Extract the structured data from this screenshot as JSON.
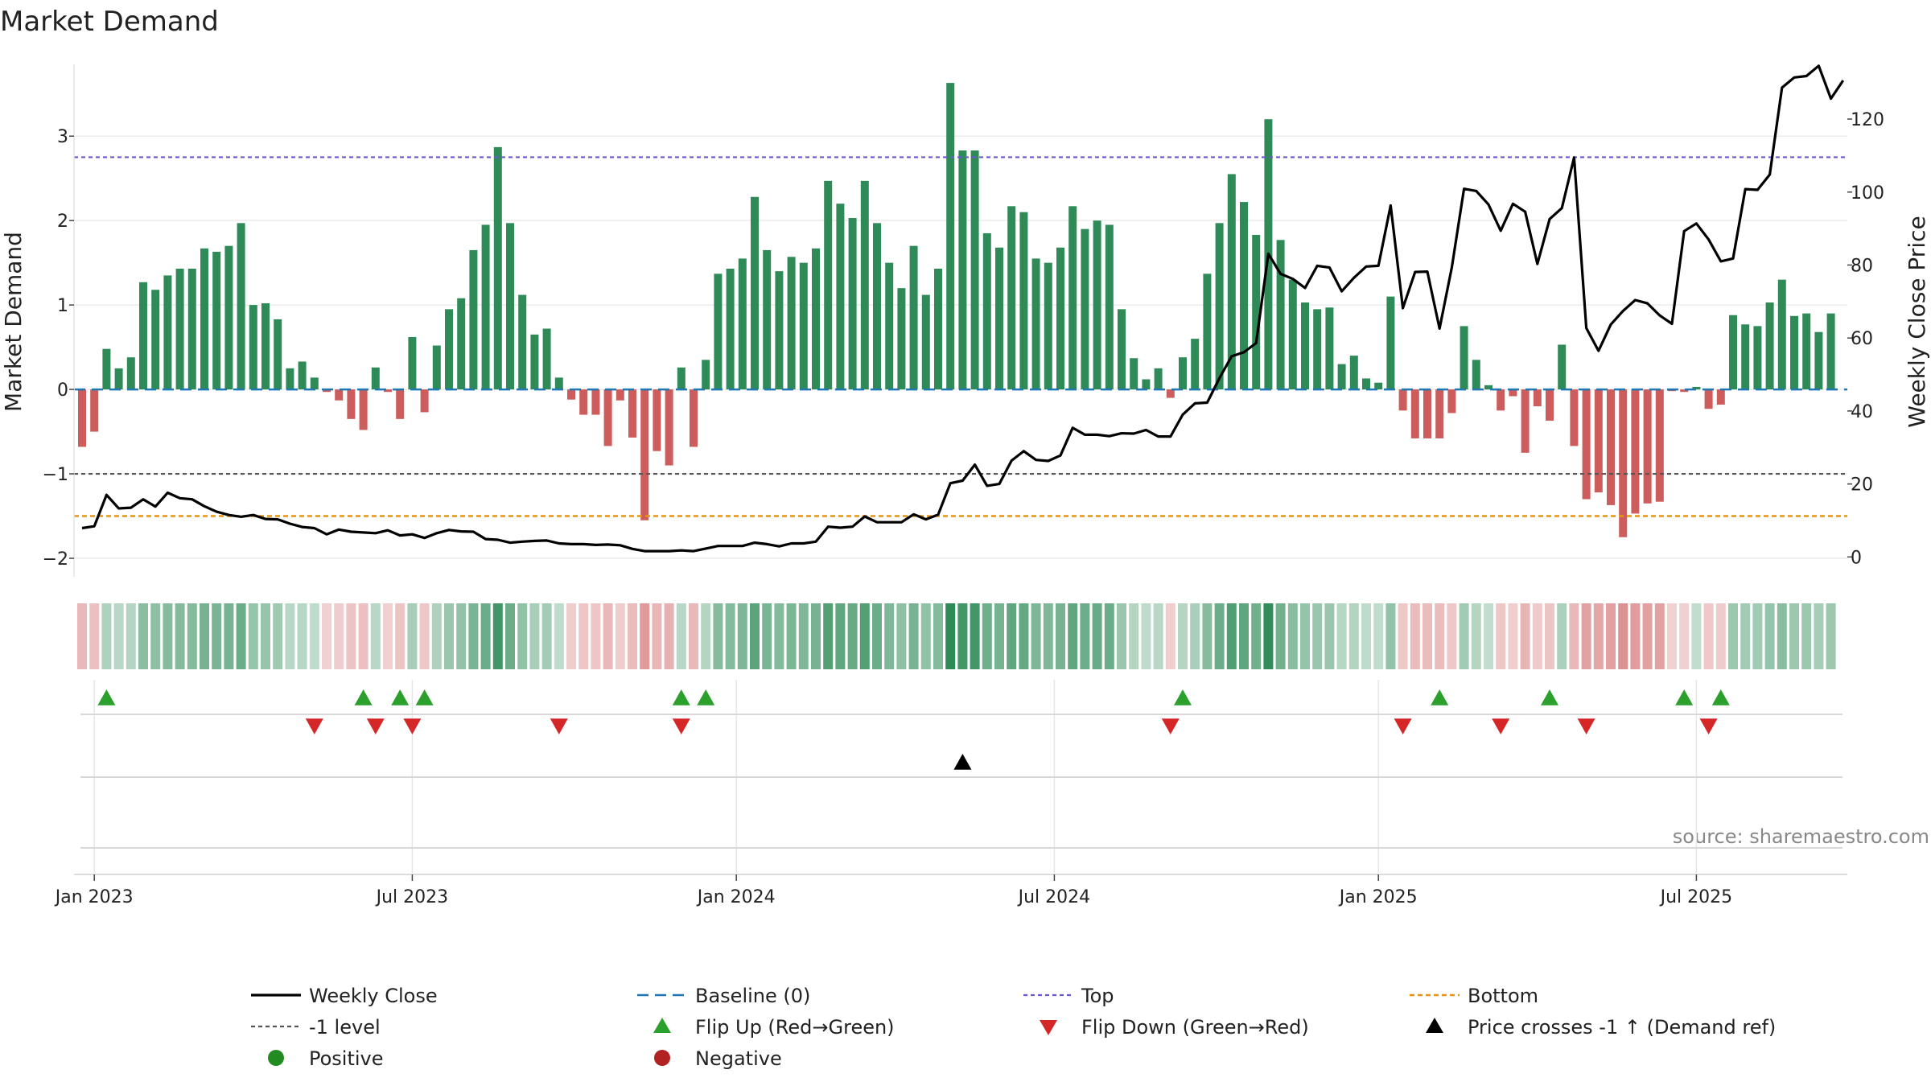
{
  "chart_data": {
    "type": "bar",
    "title": "Market Demand",
    "ylabel": "Market Demand",
    "y2label": "Weekly Close Price",
    "ylim": [
      -2.2,
      3.85
    ],
    "y2lim": [
      -5,
      135
    ],
    "yticks": [
      -2,
      -1,
      0,
      1,
      2,
      3
    ],
    "y2ticks": [
      0,
      20,
      40,
      60,
      80,
      100,
      120
    ],
    "xticks": [
      {
        "label": "Jan 2023",
        "week": 1
      },
      {
        "label": "Jul 2023",
        "week": 27
      },
      {
        "label": "Jan 2024",
        "week": 53.5
      },
      {
        "label": "Jul 2024",
        "week": 79.5
      },
      {
        "label": "Jan 2025",
        "week": 106
      },
      {
        "label": "Jul 2025",
        "week": 132
      }
    ],
    "reference_lines": {
      "top": 2.75,
      "minus_one": -1,
      "bottom": -1.5,
      "baseline": 0
    },
    "colors": {
      "positive": "#2e8b57",
      "negative": "#cd5c5c",
      "price": "#000000",
      "top": "#6a5acd",
      "minus_one": "#555555",
      "bottom": "#e69512",
      "baseline": "#1f77b4",
      "flip_up": "#2ca02c",
      "flip_down": "#d62728",
      "cross": "#000000",
      "positive_dot": "#228b22",
      "negative_dot": "#b22222"
    },
    "demand": [
      -0.68,
      -0.5,
      0.48,
      0.25,
      0.38,
      1.27,
      1.18,
      1.35,
      1.43,
      1.43,
      1.67,
      1.63,
      1.7,
      1.97,
      1.0,
      1.02,
      0.83,
      0.25,
      0.33,
      0.14,
      -0.03,
      -0.13,
      -0.35,
      -0.48,
      0.26,
      -0.03,
      -0.35,
      0.62,
      -0.27,
      0.52,
      0.95,
      1.08,
      1.65,
      1.95,
      2.87,
      1.97,
      1.12,
      0.65,
      0.72,
      0.14,
      -0.12,
      -0.3,
      -0.3,
      -0.67,
      -0.13,
      -0.57,
      -1.55,
      -0.73,
      -0.9,
      0.26,
      -0.68,
      0.35,
      1.37,
      1.43,
      1.55,
      2.28,
      1.65,
      1.4,
      1.57,
      1.5,
      1.67,
      2.47,
      2.2,
      2.03,
      2.47,
      1.97,
      1.5,
      1.2,
      1.7,
      1.12,
      1.43,
      3.63,
      2.83,
      2.83,
      1.85,
      1.68,
      2.17,
      2.1,
      1.55,
      1.5,
      1.68,
      2.17,
      1.9,
      2.0,
      1.95,
      0.95,
      0.37,
      0.12,
      0.25,
      -0.1,
      0.38,
      0.6,
      1.37,
      1.97,
      2.55,
      2.22,
      1.83,
      3.2,
      1.77,
      1.3,
      1.03,
      0.95,
      0.97,
      0.3,
      0.4,
      0.13,
      0.08,
      1.1,
      -0.25,
      -0.58,
      -0.58,
      -0.58,
      -0.28,
      0.75,
      0.35,
      0.05,
      -0.25,
      -0.08,
      -0.75,
      -0.2,
      -0.37,
      0.53,
      -0.67,
      -1.3,
      -1.22,
      -1.37,
      -1.75,
      -1.47,
      -1.35,
      -1.33,
      -0.02,
      -0.03,
      0.03,
      -0.23,
      -0.18,
      0.88,
      0.77,
      0.75,
      1.03,
      1.3,
      0.87,
      0.9,
      0.68,
      0.9
    ],
    "weekly_close": [
      7.9,
      8.4,
      17.0,
      13.3,
      13.5,
      15.8,
      13.8,
      17.6,
      16.1,
      15.8,
      13.9,
      12.4,
      11.5,
      11.0,
      11.5,
      10.4,
      10.3,
      9.1,
      8.2,
      7.9,
      6.2,
      7.5,
      6.9,
      6.7,
      6.5,
      7.3,
      5.9,
      6.2,
      5.2,
      6.5,
      7.4,
      7.0,
      6.9,
      4.9,
      4.7,
      3.9,
      4.2,
      4.4,
      4.5,
      3.7,
      3.5,
      3.5,
      3.3,
      3.4,
      3.2,
      2.2,
      1.6,
      1.6,
      1.6,
      1.8,
      1.6,
      2.3,
      3.0,
      3.0,
      3.0,
      3.9,
      3.5,
      2.9,
      3.7,
      3.7,
      4.2,
      8.3,
      8.0,
      8.3,
      11.1,
      9.5,
      9.5,
      9.5,
      11.7,
      10.3,
      11.6,
      20.2,
      20.9,
      25.3,
      19.5,
      20.0,
      26.4,
      29.0,
      26.6,
      26.3,
      27.8,
      35.4,
      33.5,
      33.5,
      33.1,
      33.9,
      33.8,
      34.8,
      33.0,
      33.0,
      39.0,
      42.1,
      42.3,
      49.0,
      55.0,
      56.1,
      58.6,
      83.1,
      77.6,
      76.2,
      73.7,
      79.8,
      79.3,
      72.8,
      76.5,
      79.6,
      79.8,
      96.3,
      68.2,
      78.1,
      78.2,
      62.6,
      79.3,
      100.9,
      100.3,
      96.6,
      89.4,
      96.8,
      94.6,
      80.3,
      92.6,
      95.6,
      109.5,
      62.7,
      56.5,
      63.7,
      67.4,
      70.4,
      69.5,
      66.2,
      63.9,
      89.3,
      91.4,
      87.0,
      81.0,
      81.8,
      100.8,
      100.6,
      104.8,
      128.6,
      131.4,
      131.8,
      134.6,
      125.6,
      130.6
    ],
    "flip_up_weeks": [
      2,
      23,
      26,
      28,
      49,
      51,
      90,
      111,
      120,
      131,
      134
    ],
    "flip_down_weeks": [
      19,
      24,
      27,
      39,
      49,
      89,
      108,
      116,
      123,
      133
    ],
    "price_cross_weeks": [
      72
    ],
    "source": "source: sharemaestro.com",
    "legend": [
      {
        "key": "price",
        "label": "Weekly Close"
      },
      {
        "key": "baseline",
        "label": "Baseline (0)"
      },
      {
        "key": "top",
        "label": "Top"
      },
      {
        "key": "bottom",
        "label": "Bottom"
      },
      {
        "key": "minus_one",
        "label": "-1 level"
      },
      {
        "key": "flip_up",
        "label": "Flip Up (Red→Green)"
      },
      {
        "key": "flip_down",
        "label": "Flip Down (Green→Red)"
      },
      {
        "key": "cross",
        "label": "Price crosses -1 ↑ (Demand ref)"
      },
      {
        "key": "positive_dot",
        "label": "Positive"
      },
      {
        "key": "negative_dot",
        "label": "Negative"
      }
    ]
  }
}
